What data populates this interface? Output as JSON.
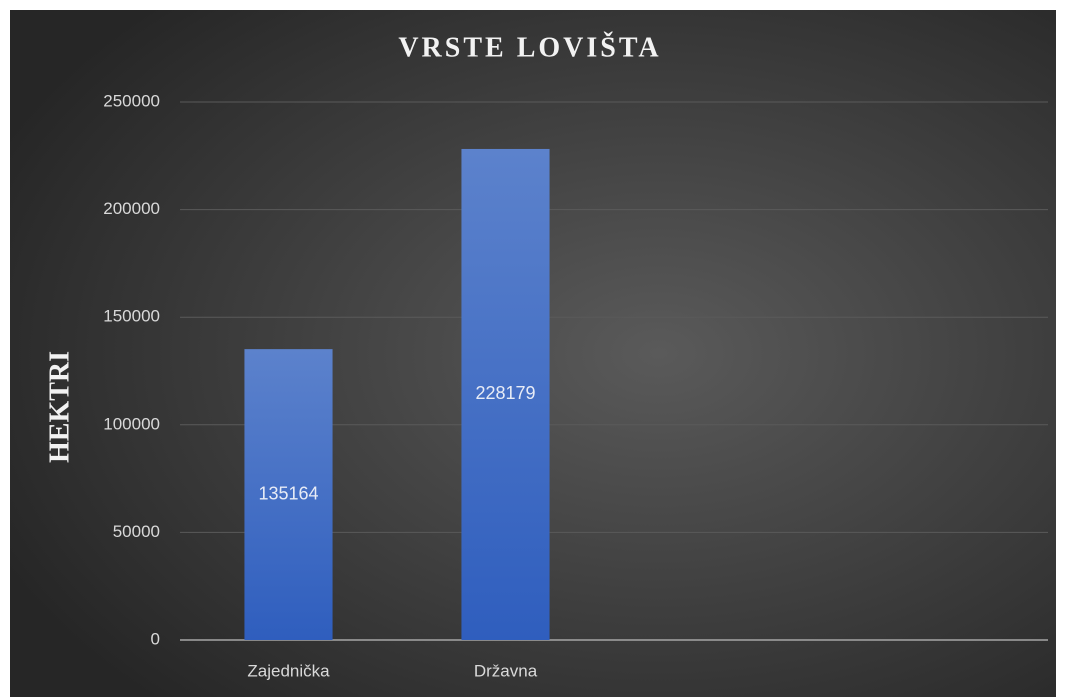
{
  "chart_data": {
    "type": "bar",
    "title": "VRSTE LOVIŠTA",
    "y_label": "HEKTRI",
    "categories": [
      "Zajednička",
      "Državna",
      null,
      null
    ],
    "values": [
      135164,
      228179,
      null,
      null
    ],
    "color": "#4472c4",
    "ylim": [
      0,
      250000
    ],
    "yticks": [
      0,
      50000,
      100000,
      150000,
      200000,
      250000
    ],
    "grid": true
  }
}
